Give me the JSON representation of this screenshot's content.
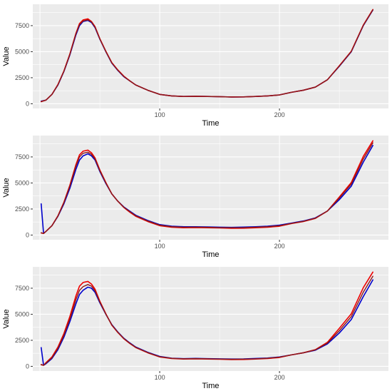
{
  "chart_data": [
    {
      "type": "line",
      "xlabel": "Time",
      "ylabel": "Value",
      "xlim": [
        -6,
        291
      ],
      "ylim": [
        -450,
        9550
      ],
      "x_ticks": [
        100,
        200
      ],
      "x_tick_labels": [
        "100",
        "200"
      ],
      "y_ticks": [
        0,
        2500,
        5000,
        7500
      ],
      "y_tick_labels": [
        "0",
        "2500",
        "5000",
        "7500"
      ],
      "grid": true,
      "legend": "none",
      "x": [
        1,
        5,
        10,
        15,
        20,
        25,
        30,
        33,
        36,
        40,
        43,
        46,
        50,
        55,
        60,
        65,
        70,
        75,
        80,
        90,
        100,
        110,
        120,
        130,
        140,
        150,
        160,
        170,
        180,
        190,
        200,
        210,
        220,
        230,
        240,
        250,
        260,
        270,
        278
      ],
      "series": [
        {
          "color": "#0000cc",
          "values": [
            250,
            350,
            900,
            1800,
            3100,
            4700,
            6600,
            7500,
            7900,
            8000,
            7800,
            7300,
            6200,
            5000,
            3900,
            3200,
            2600,
            2200,
            1800,
            1300,
            900,
            750,
            700,
            720,
            700,
            680,
            650,
            660,
            700,
            750,
            850,
            1100,
            1300,
            1600,
            2300,
            3600,
            5000,
            7500,
            9000
          ]
        },
        {
          "color": "#ee0000",
          "values": [
            200,
            350,
            900,
            1850,
            3150,
            4800,
            6750,
            7700,
            8050,
            8150,
            7900,
            7400,
            6250,
            5050,
            3950,
            3250,
            2650,
            2200,
            1800,
            1300,
            900,
            750,
            700,
            720,
            700,
            680,
            650,
            660,
            700,
            750,
            850,
            1100,
            1300,
            1600,
            2300,
            3650,
            5050,
            7550,
            9050
          ]
        },
        {
          "color": "#8b1a1a",
          "values": [
            220,
            350,
            900,
            1820,
            3120,
            4750,
            6700,
            7600,
            7950,
            8050,
            7850,
            7350,
            6220,
            5020,
            3920,
            3220,
            2620,
            2200,
            1800,
            1300,
            900,
            750,
            700,
            720,
            700,
            680,
            650,
            660,
            700,
            750,
            850,
            1100,
            1300,
            1600,
            2300,
            3620,
            5020,
            7520,
            9020
          ]
        }
      ]
    },
    {
      "type": "line",
      "xlabel": "Time",
      "ylabel": "Value",
      "xlim": [
        -6,
        291
      ],
      "ylim": [
        -450,
        9550
      ],
      "x_ticks": [
        100,
        200
      ],
      "x_tick_labels": [
        "100",
        "200"
      ],
      "y_ticks": [
        0,
        2500,
        5000,
        7500
      ],
      "y_tick_labels": [
        "0",
        "2500",
        "5000",
        "7500"
      ],
      "grid": true,
      "legend": "none",
      "x": [
        1,
        3,
        5,
        10,
        15,
        20,
        25,
        30,
        33,
        36,
        40,
        43,
        46,
        50,
        55,
        60,
        65,
        70,
        75,
        80,
        90,
        100,
        110,
        120,
        130,
        140,
        150,
        160,
        170,
        180,
        190,
        200,
        210,
        220,
        230,
        240,
        250,
        260,
        270,
        278
      ],
      "series": [
        {
          "color": "#0000cc",
          "values": [
            3000,
            150,
            350,
            900,
            1800,
            3000,
            4500,
            6300,
            7200,
            7600,
            7800,
            7600,
            7200,
            6100,
            4950,
            3950,
            3250,
            2700,
            2300,
            1900,
            1400,
            1000,
            850,
            800,
            800,
            780,
            750,
            740,
            760,
            800,
            850,
            950,
            1150,
            1350,
            1650,
            2300,
            3400,
            4700,
            7000,
            8600
          ]
        },
        {
          "color": "#ee0000",
          "values": [
            200,
            150,
            350,
            900,
            1850,
            3150,
            4800,
            6750,
            7700,
            8050,
            8150,
            7900,
            7400,
            6250,
            5050,
            3950,
            3250,
            2650,
            2200,
            1800,
            1300,
            900,
            750,
            700,
            720,
            700,
            680,
            650,
            660,
            700,
            750,
            850,
            1100,
            1300,
            1600,
            2300,
            3650,
            5050,
            7550,
            9050
          ]
        },
        {
          "color": "#8b1a1a",
          "values": [
            220,
            150,
            350,
            900,
            1820,
            3100,
            4700,
            6600,
            7500,
            7850,
            7950,
            7750,
            7300,
            6170,
            5000,
            3950,
            3250,
            2670,
            2250,
            1850,
            1350,
            950,
            800,
            750,
            760,
            740,
            710,
            700,
            710,
            750,
            800,
            900,
            1120,
            1320,
            1620,
            2300,
            3550,
            4900,
            7300,
            8850
          ]
        }
      ]
    },
    {
      "type": "line",
      "xlabel": "Time",
      "ylabel": "Value",
      "xlim": [
        -6,
        291
      ],
      "ylim": [
        -450,
        9550
      ],
      "x_ticks": [
        100,
        200
      ],
      "x_tick_labels": [
        "100",
        "200"
      ],
      "y_ticks": [
        0,
        2500,
        5000,
        7500
      ],
      "y_tick_labels": [
        "0",
        "2500",
        "5000",
        "7500"
      ],
      "grid": true,
      "legend": "none",
      "x": [
        1,
        3,
        5,
        10,
        15,
        20,
        25,
        30,
        33,
        36,
        40,
        43,
        46,
        50,
        55,
        60,
        65,
        70,
        75,
        80,
        90,
        100,
        110,
        120,
        130,
        140,
        150,
        160,
        170,
        180,
        190,
        200,
        210,
        220,
        230,
        240,
        250,
        260,
        270,
        278
      ],
      "series": [
        {
          "color": "#0000cc",
          "values": [
            1800,
            100,
            250,
            750,
            1600,
            2800,
            4300,
            6000,
            6900,
            7300,
            7600,
            7500,
            7100,
            6100,
            5000,
            4000,
            3300,
            2700,
            2250,
            1850,
            1350,
            950,
            780,
            740,
            760,
            740,
            720,
            700,
            710,
            750,
            800,
            900,
            1100,
            1300,
            1550,
            2150,
            3200,
            4500,
            6700,
            8300
          ]
        },
        {
          "color": "#ee0000",
          "values": [
            150,
            100,
            350,
            900,
            1850,
            3150,
            4800,
            6750,
            7700,
            8050,
            8150,
            7900,
            7400,
            6250,
            5050,
            3950,
            3250,
            2650,
            2200,
            1800,
            1300,
            900,
            750,
            700,
            720,
            700,
            680,
            650,
            660,
            700,
            750,
            850,
            1100,
            1300,
            1600,
            2300,
            3650,
            5050,
            7550,
            9050
          ]
        },
        {
          "color": "#8b1a1a",
          "values": [
            180,
            100,
            300,
            820,
            1720,
            2980,
            4550,
            6400,
            7300,
            7650,
            7850,
            7700,
            7250,
            6170,
            5020,
            3970,
            3270,
            2670,
            2220,
            1820,
            1320,
            920,
            770,
            720,
            740,
            720,
            700,
            680,
            690,
            720,
            780,
            880,
            1100,
            1300,
            1580,
            2230,
            3420,
            4780,
            7120,
            8650
          ]
        }
      ]
    }
  ]
}
